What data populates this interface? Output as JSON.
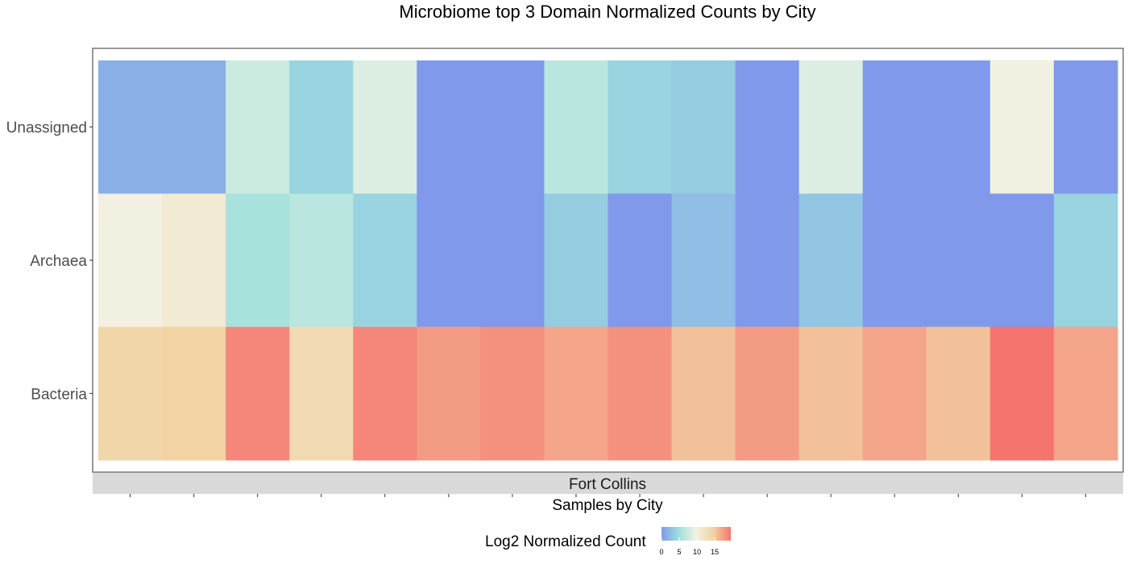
{
  "chart_data": {
    "type": "heatmap",
    "title": "Microbiome top 3 Domain Normalized Counts by City",
    "xlabel": "Samples by City",
    "ylabel": "",
    "facet": "Fort Collins",
    "rows": [
      "Unassigned",
      "Archaea",
      "Bacteria"
    ],
    "n_samples": 16,
    "values": [
      [
        1.5,
        1.5,
        7.5,
        4.0,
        8.5,
        0.0,
        0.0,
        6.5,
        4.0,
        3.5,
        0.0,
        8.5,
        0.0,
        0.0,
        10.0,
        0.0
      ],
      [
        10.0,
        11.0,
        5.5,
        6.5,
        4.0,
        0.0,
        0.0,
        3.5,
        0.0,
        2.5,
        0.0,
        3.0,
        0.0,
        0.0,
        0.0,
        4.0
      ],
      [
        14.0,
        14.5,
        18.5,
        13.5,
        18.5,
        17.5,
        18.0,
        17.0,
        18.0,
        15.5,
        17.5,
        15.5,
        17.0,
        15.5,
        19.5,
        17.0
      ]
    ],
    "colorbar": {
      "title": "Log2 Normalized Count",
      "range": [
        0,
        19.5
      ],
      "ticks": [
        0,
        5,
        10,
        15
      ],
      "colors": [
        "#8099eb",
        "#9de0dc",
        "#f2f2e3",
        "#f1d2a2",
        "#f5746e"
      ]
    }
  }
}
